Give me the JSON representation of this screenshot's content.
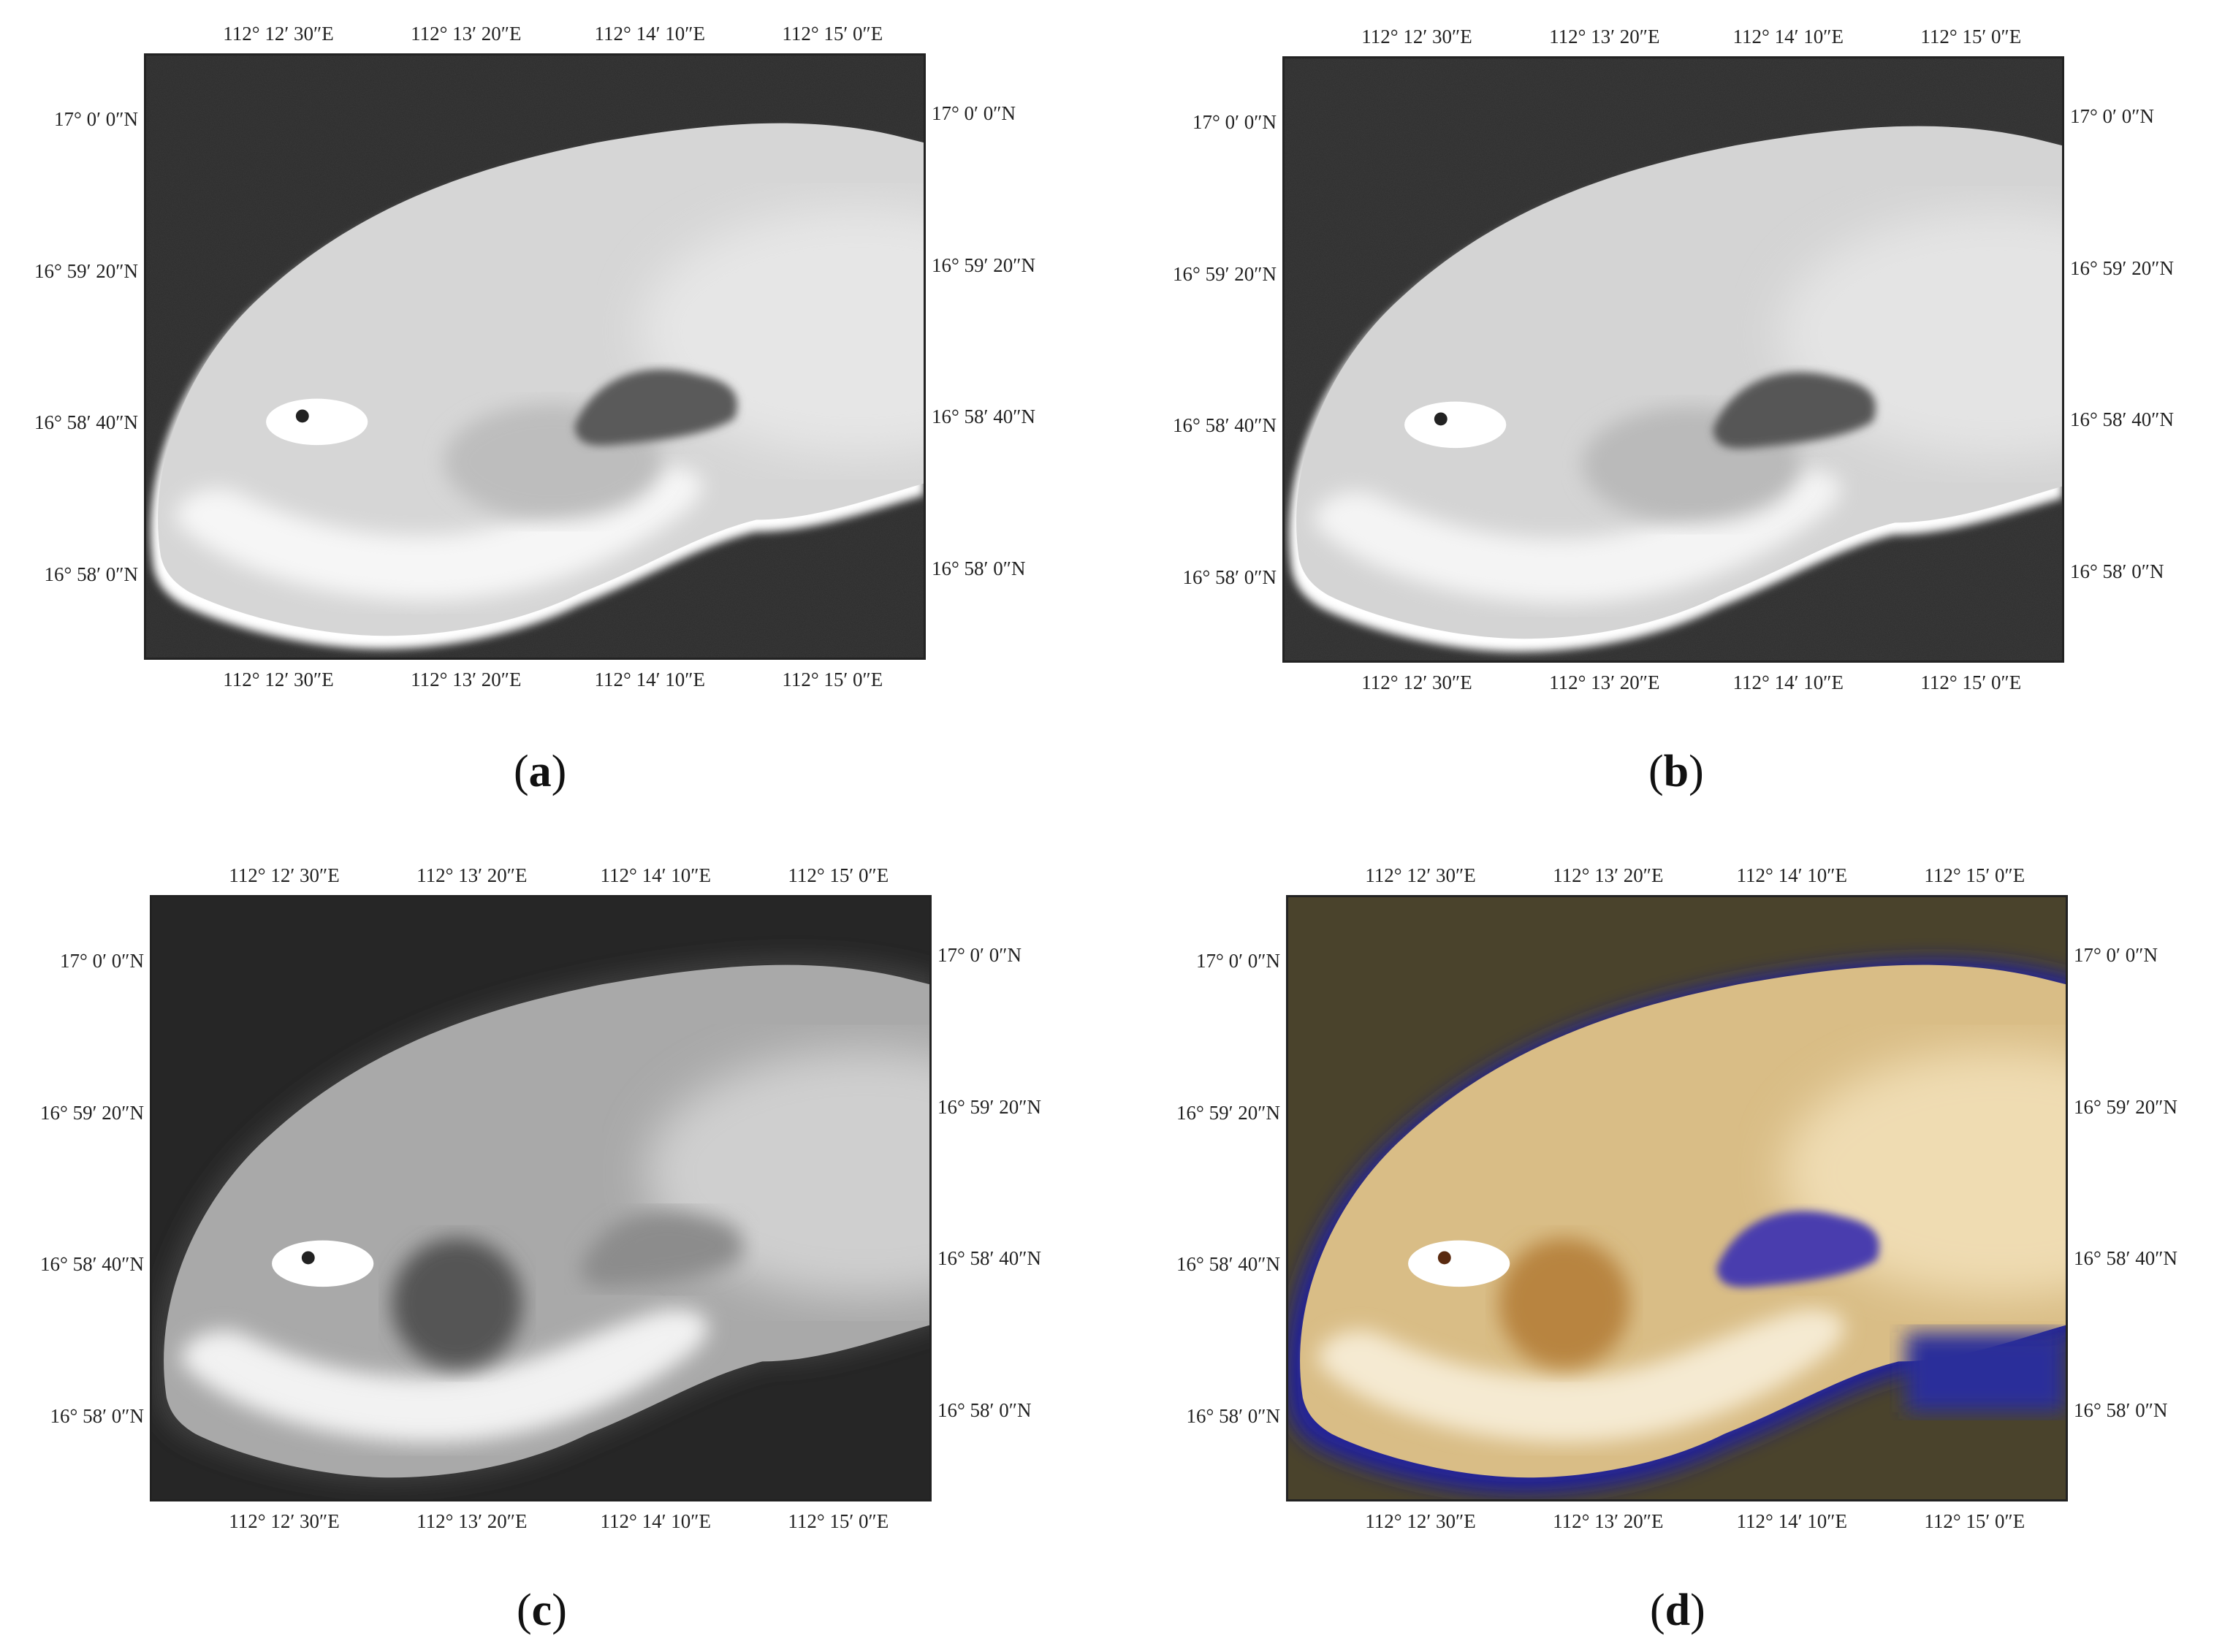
{
  "figure": {
    "panels": [
      {
        "label": "a",
        "style": "grayscale-speckle"
      },
      {
        "label": "b",
        "style": "grayscale-speckle"
      },
      {
        "label": "c",
        "style": "grayscale-smooth"
      },
      {
        "label": "d",
        "style": "false-color"
      }
    ],
    "lon_ticks": [
      "112° 12′ 30″E",
      "112° 13′ 20″E",
      "112° 14′ 10″E",
      "112° 15′ 0″E"
    ],
    "lat_ticks_left": [
      "17° 0′ 0″N",
      "16° 59′ 20″N",
      "16° 58′ 40″N",
      "16° 58′ 0″N"
    ],
    "lat_ticks_right": [
      "17° 0′ 0″N",
      "16° 59′ 20″N",
      "16° 58′ 40″N",
      "16° 58′ 0″N"
    ]
  },
  "colors": {
    "water_gray": "#3b3b3b",
    "island_gray": "#d9d9d9",
    "water_tan": "#4a432c",
    "island_tan": "#dcc08c",
    "halo_blue": "#2a2a9c"
  }
}
